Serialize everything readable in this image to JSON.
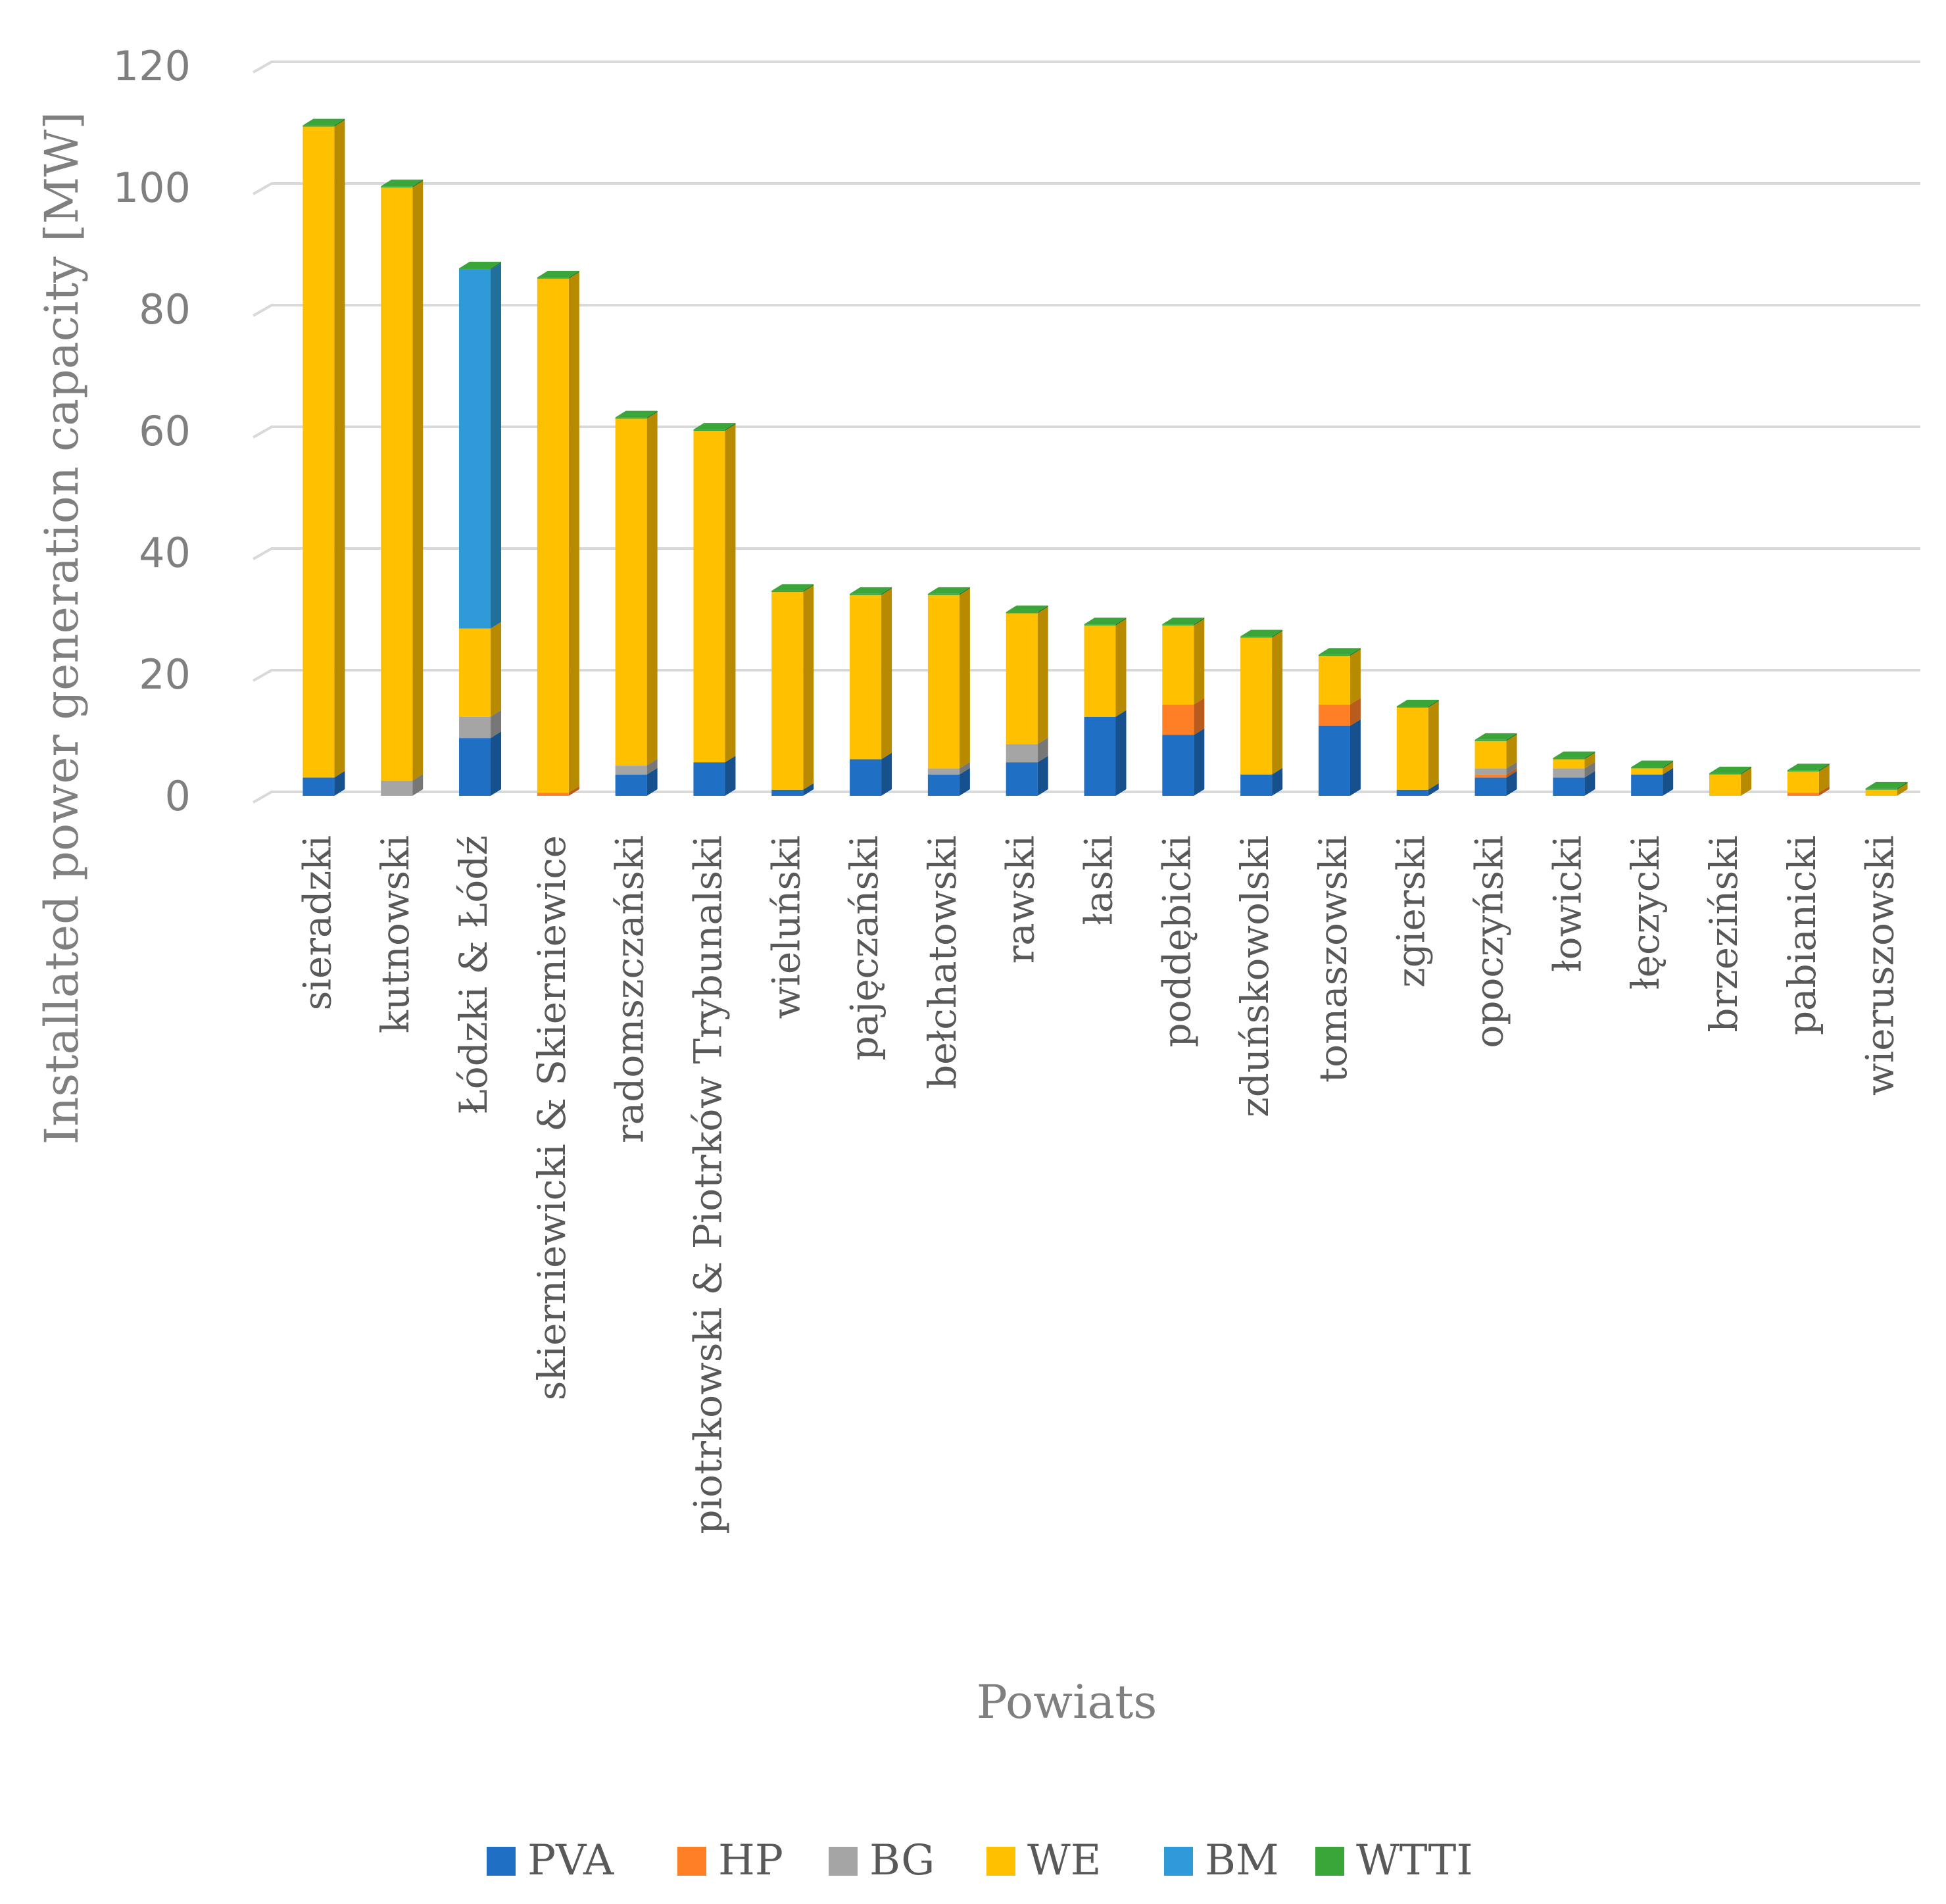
{
  "chart_data": {
    "type": "bar",
    "stacked": true,
    "title": "",
    "xlabel": "Powiats",
    "ylabel": "Installated power generation capacity [MW]",
    "ylim": [
      0,
      120
    ],
    "yticks": [
      0,
      20,
      40,
      60,
      80,
      100,
      120
    ],
    "grid": true,
    "legend_position": "bottom",
    "categories": [
      "sieradzki",
      "kutnowski",
      "Łódzki & Łódź",
      "skierniewicki & Skierniewice",
      "radomszczański",
      "piotrkowski & Piotrków Trybunalski",
      "wieluński",
      "pajęczański",
      "bełchatowski",
      "rawski",
      "łaski",
      "poddębicki",
      "zduńskowolski",
      "tomaszowski",
      "zgierski",
      "opoczyński",
      "łowicki",
      "łęczycki",
      "brzeziński",
      "pabianicki",
      "wieruszowski"
    ],
    "series": [
      {
        "name": "PVA",
        "color": "#1f6fc4",
        "values": [
          3,
          0,
          9.5,
          0,
          3.5,
          5.5,
          1,
          6,
          3.5,
          5.5,
          13,
          10,
          3.5,
          11.5,
          1,
          3,
          3,
          3.5,
          0,
          0,
          0
        ]
      },
      {
        "name": "HP",
        "color": "#ff7f27",
        "values": [
          0,
          0,
          0,
          0.5,
          0,
          0,
          0,
          0,
          0,
          0,
          0,
          5,
          0,
          3.5,
          0,
          0.5,
          0,
          0,
          0,
          0.5,
          0
        ]
      },
      {
        "name": "BG",
        "color": "#a5a5a5",
        "values": [
          0,
          2.5,
          3.5,
          0,
          1.5,
          0,
          0,
          0,
          1,
          3,
          0,
          0,
          0,
          0,
          0,
          1,
          1.5,
          0,
          0,
          0,
          0
        ]
      },
      {
        "name": "WE",
        "color": "#ffc000",
        "values": [
          107,
          97.5,
          14.5,
          84.5,
          57,
          54.5,
          32.5,
          27,
          28.5,
          21.5,
          15,
          13,
          22.5,
          8,
          13.5,
          4.5,
          1.5,
          1,
          3.5,
          3.5,
          1
        ]
      },
      {
        "name": "BM",
        "color": "#2e9bd8",
        "values": [
          0,
          0,
          59,
          0,
          0,
          0,
          0,
          0,
          0,
          0,
          0,
          0,
          0,
          0,
          0,
          0,
          0,
          0,
          0,
          0,
          0
        ]
      },
      {
        "name": "WTTI",
        "color": "#3aa63a",
        "values": [
          0.2,
          0.2,
          0.2,
          0.2,
          0.2,
          0.2,
          0.2,
          0.2,
          0.2,
          0.2,
          0.2,
          0.2,
          0.2,
          0.2,
          0.2,
          0.2,
          0.2,
          0.2,
          0.2,
          0.2,
          0.2
        ]
      }
    ]
  }
}
